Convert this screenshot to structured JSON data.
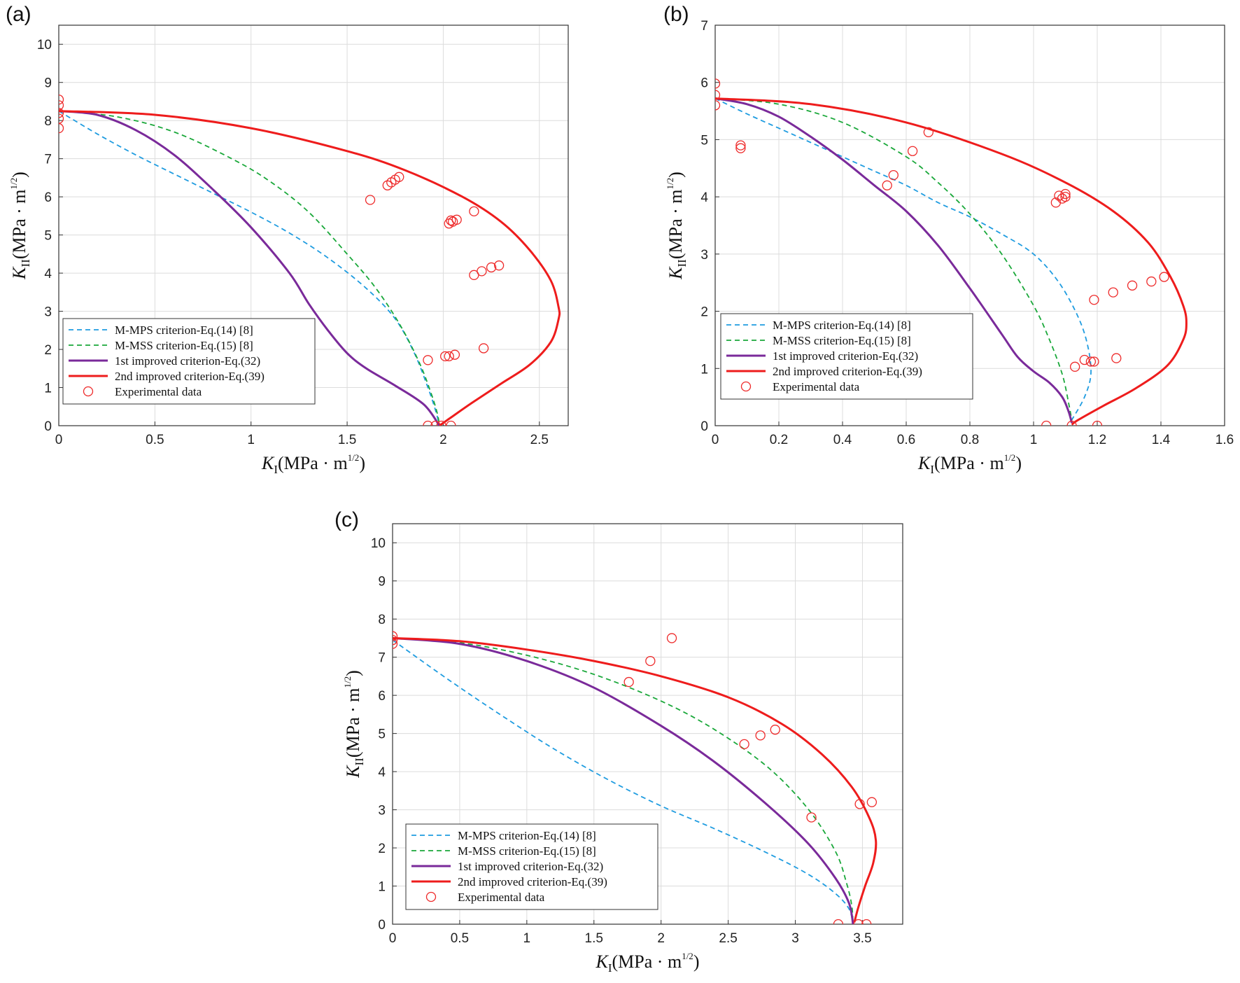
{
  "chart_data": [
    {
      "panel": "(a)",
      "type": "line",
      "xlabel_base": "K",
      "xlabel_sub": "I",
      "xlabel_unit": "(MPa · m",
      "xlabel_exp": "1/2",
      "xlabel_close": ")",
      "ylabel_base": "K",
      "ylabel_sub": "II",
      "ylabel_unit": "(MPa · m",
      "ylabel_exp": "1/2",
      "ylabel_close": ")",
      "xlim": [
        0,
        2.65
      ],
      "ylim": [
        0,
        10.5
      ],
      "xticks": [
        0,
        0.5,
        1,
        1.5,
        2,
        2.5
      ],
      "xtick_labels": [
        "0",
        "0.5",
        "1",
        "1.5",
        "2",
        "2.5"
      ],
      "yticks": [
        0,
        1,
        2,
        3,
        4,
        5,
        6,
        7,
        8,
        9,
        10
      ],
      "ytick_labels": [
        "0",
        "1",
        "2",
        "3",
        "4",
        "5",
        "6",
        "7",
        "8",
        "9",
        "10"
      ],
      "grid": true,
      "legend_position": "bottom-left",
      "series": [
        {
          "name": "M-MPS criterion-Eq.(14) [8]",
          "style": "dashed",
          "color": "#1f9ce0",
          "x": [
            0,
            0.2,
            0.4,
            0.6,
            0.8,
            1.0,
            1.2,
            1.4,
            1.6,
            1.75,
            1.85,
            1.92,
            1.96,
            1.98
          ],
          "y": [
            8.25,
            7.65,
            7.1,
            6.6,
            6.1,
            5.6,
            5.05,
            4.4,
            3.6,
            2.8,
            1.9,
            1.0,
            0.4,
            0
          ]
        },
        {
          "name": "M-MSS criterion-Eq.(15) [8]",
          "style": "dashed",
          "color": "#1aa83a",
          "x": [
            0,
            0.3,
            0.6,
            0.9,
            1.1,
            1.3,
            1.5,
            1.65,
            1.78,
            1.88,
            1.94,
            1.97,
            1.98
          ],
          "y": [
            8.25,
            8.1,
            7.7,
            7.0,
            6.4,
            5.6,
            4.5,
            3.6,
            2.6,
            1.6,
            0.8,
            0.3,
            0
          ]
        },
        {
          "name": "1st improved criterion-Eq.(32)",
          "style": "solid",
          "color": "#7a2a9a",
          "x": [
            0,
            0.2,
            0.4,
            0.6,
            0.8,
            1.0,
            1.2,
            1.3,
            1.4,
            1.5,
            1.6,
            1.75,
            1.9,
            1.98
          ],
          "y": [
            8.25,
            8.15,
            7.75,
            7.1,
            6.2,
            5.2,
            4.0,
            3.2,
            2.5,
            1.9,
            1.5,
            1.05,
            0.55,
            0
          ]
        },
        {
          "name": "2nd improved criterion-Eq.(39)",
          "style": "solid",
          "color": "#ee1c1c",
          "x": [
            0,
            0.5,
            1.0,
            1.5,
            1.8,
            2.1,
            2.3,
            2.45,
            2.56,
            2.6,
            2.6,
            2.56,
            2.45,
            2.3,
            2.15,
            2.05,
            1.98
          ],
          "y": [
            8.25,
            8.15,
            7.8,
            7.2,
            6.7,
            6.0,
            5.35,
            4.6,
            3.8,
            3.1,
            2.8,
            2.2,
            1.6,
            1.1,
            0.6,
            0.25,
            0
          ]
        },
        {
          "name": "Experimental data",
          "style": "marker",
          "color": "#ee2a2a",
          "x": [
            0,
            0,
            0,
            0,
            0,
            1.62,
            1.71,
            1.73,
            1.75,
            1.77,
            2.16,
            2.03,
            2.05,
            2.07,
            2.04,
            2.16,
            2.2,
            2.25,
            2.29,
            2.21,
            2.01,
            2.03,
            2.06,
            1.92,
            1.92,
            1.96,
            1.99,
            2.04
          ],
          "y": [
            8.55,
            8.4,
            8.2,
            8.05,
            7.8,
            5.92,
            6.3,
            6.38,
            6.45,
            6.52,
            5.62,
            5.3,
            5.35,
            5.4,
            5.38,
            3.95,
            4.05,
            4.15,
            4.2,
            2.03,
            1.82,
            1.82,
            1.86,
            1.72,
            0,
            0,
            0,
            0
          ]
        }
      ]
    },
    {
      "panel": "(b)",
      "type": "line",
      "xlabel_base": "K",
      "xlabel_sub": "I",
      "xlabel_unit": "(MPa · m",
      "xlabel_exp": "1/2",
      "xlabel_close": ")",
      "ylabel_base": "K",
      "ylabel_sub": "II",
      "ylabel_unit": "(MPa · m",
      "ylabel_exp": "1/2",
      "ylabel_close": ")",
      "xlim": [
        0,
        1.6
      ],
      "ylim": [
        0,
        7
      ],
      "xticks": [
        0,
        0.2,
        0.4,
        0.6,
        0.8,
        1,
        1.2,
        1.4,
        1.6
      ],
      "xtick_labels": [
        "0",
        "0.2",
        "0.4",
        "0.6",
        "0.8",
        "1",
        "1.2",
        "1.4",
        "1.6"
      ],
      "yticks": [
        0,
        1,
        2,
        3,
        4,
        5,
        6,
        7
      ],
      "ytick_labels": [
        "0",
        "1",
        "2",
        "3",
        "4",
        "5",
        "6",
        "7"
      ],
      "grid": true,
      "legend_position": "bottom-left",
      "series": [
        {
          "name": "M-MPS criterion-Eq.(14) [8]",
          "style": "dashed",
          "color": "#1f9ce0",
          "x": [
            0,
            0.1,
            0.2,
            0.3,
            0.4,
            0.5,
            0.6,
            0.7,
            0.8,
            0.9,
            1.0,
            1.08,
            1.14,
            1.17,
            1.18,
            1.16,
            1.12
          ],
          "y": [
            5.72,
            5.45,
            5.2,
            4.95,
            4.7,
            4.45,
            4.2,
            3.9,
            3.65,
            3.35,
            3.0,
            2.5,
            1.9,
            1.4,
            0.9,
            0.5,
            0.1
          ]
        },
        {
          "name": "M-MSS criterion-Eq.(15) [8]",
          "style": "dashed",
          "color": "#1aa83a",
          "x": [
            0,
            0.2,
            0.4,
            0.6,
            0.7,
            0.8,
            0.9,
            1.0,
            1.05,
            1.09,
            1.11,
            1.12
          ],
          "y": [
            5.72,
            5.62,
            5.3,
            4.7,
            4.25,
            3.7,
            3.0,
            2.1,
            1.5,
            0.9,
            0.4,
            0.1
          ]
        },
        {
          "name": "1st improved criterion-Eq.(32)",
          "style": "solid",
          "color": "#7a2a9a",
          "x": [
            0,
            0.1,
            0.2,
            0.3,
            0.4,
            0.5,
            0.6,
            0.7,
            0.8,
            0.9,
            0.95,
            1.0,
            1.05,
            1.09,
            1.11,
            1.12
          ],
          "y": [
            5.72,
            5.62,
            5.4,
            5.05,
            4.65,
            4.2,
            3.75,
            3.15,
            2.4,
            1.6,
            1.2,
            0.95,
            0.75,
            0.5,
            0.25,
            0.05
          ]
        },
        {
          "name": "2nd improved criterion-Eq.(39)",
          "style": "solid",
          "color": "#ee1c1c",
          "x": [
            0,
            0.3,
            0.6,
            0.9,
            1.1,
            1.25,
            1.36,
            1.43,
            1.47,
            1.48,
            1.47,
            1.42,
            1.32,
            1.22,
            1.14,
            1.12
          ],
          "y": [
            5.72,
            5.62,
            5.3,
            4.75,
            4.25,
            3.75,
            3.2,
            2.6,
            2.1,
            1.8,
            1.5,
            1.05,
            0.65,
            0.35,
            0.1,
            0.02
          ]
        },
        {
          "name": "Experimental data",
          "style": "marker",
          "color": "#ee2a2a",
          "x": [
            0,
            0,
            0,
            0.08,
            0.08,
            0.54,
            0.56,
            0.62,
            0.67,
            1.07,
            1.08,
            1.09,
            1.1,
            1.1,
            1.19,
            1.25,
            1.31,
            1.37,
            1.41,
            1.13,
            1.16,
            1.18,
            1.19,
            1.26,
            1.04,
            1.12,
            1.2
          ],
          "y": [
            5.98,
            5.78,
            5.6,
            4.9,
            4.85,
            4.2,
            4.38,
            4.8,
            5.13,
            3.9,
            4.02,
            3.97,
            4.05,
            4.0,
            2.2,
            2.33,
            2.45,
            2.52,
            2.6,
            1.03,
            1.15,
            1.12,
            1.12,
            1.18,
            0,
            0,
            0
          ]
        }
      ]
    },
    {
      "panel": "(c)",
      "type": "line",
      "xlabel_base": "K",
      "xlabel_sub": "I",
      "xlabel_unit": "(MPa · m",
      "xlabel_exp": "1/2",
      "xlabel_close": ")",
      "ylabel_base": "K",
      "ylabel_sub": "II",
      "ylabel_unit": "(MPa · m",
      "ylabel_exp": "1/2",
      "ylabel_close": ")",
      "xlim": [
        0,
        3.8
      ],
      "ylim": [
        0,
        10.5
      ],
      "xticks": [
        0,
        0.5,
        1,
        1.5,
        2,
        2.5,
        3,
        3.5
      ],
      "xtick_labels": [
        "0",
        "0.5",
        "1",
        "1.5",
        "2",
        "2.5",
        "3",
        "3.5"
      ],
      "yticks": [
        0,
        1,
        2,
        3,
        4,
        5,
        6,
        7,
        8,
        9,
        10
      ],
      "ytick_labels": [
        "0",
        "1",
        "2",
        "3",
        "4",
        "5",
        "6",
        "7",
        "8",
        "9",
        "10"
      ],
      "grid": true,
      "legend_position": "bottom-left",
      "series": [
        {
          "name": "M-MPS criterion-Eq.(14) [8]",
          "style": "dashed",
          "color": "#1f9ce0",
          "x": [
            0,
            0.4,
            0.8,
            1.2,
            1.6,
            2.0,
            2.4,
            2.8,
            3.1,
            3.3,
            3.4,
            3.43
          ],
          "y": [
            7.45,
            6.45,
            5.5,
            4.6,
            3.8,
            3.1,
            2.5,
            1.85,
            1.3,
            0.8,
            0.4,
            0
          ]
        },
        {
          "name": "M-MSS criterion-Eq.(15) [8]",
          "style": "dashed",
          "color": "#1aa83a",
          "x": [
            0,
            0.5,
            1.0,
            1.5,
            2.0,
            2.4,
            2.8,
            3.1,
            3.3,
            3.38,
            3.42,
            3.43
          ],
          "y": [
            7.5,
            7.38,
            7.05,
            6.55,
            5.85,
            5.1,
            4.1,
            3.0,
            1.9,
            1.1,
            0.5,
            0
          ]
        },
        {
          "name": "1st improved criterion-Eq.(32)",
          "style": "solid",
          "color": "#7a2a9a",
          "x": [
            0,
            0.5,
            1.0,
            1.5,
            2.0,
            2.4,
            2.8,
            3.1,
            3.3,
            3.4,
            3.43
          ],
          "y": [
            7.5,
            7.35,
            6.9,
            6.2,
            5.2,
            4.25,
            3.1,
            2.1,
            1.2,
            0.55,
            0
          ]
        },
        {
          "name": "2nd improved criterion-Eq.(39)",
          "style": "solid",
          "color": "#ee1c1c",
          "x": [
            0,
            0.5,
            1.0,
            1.5,
            2.0,
            2.5,
            2.9,
            3.2,
            3.42,
            3.55,
            3.6,
            3.58,
            3.52,
            3.47,
            3.44
          ],
          "y": [
            7.5,
            7.42,
            7.2,
            6.9,
            6.5,
            5.95,
            5.25,
            4.45,
            3.6,
            2.8,
            2.2,
            1.6,
            1.0,
            0.45,
            0.05
          ]
        },
        {
          "name": "Experimental data",
          "style": "marker",
          "color": "#ee2a2a",
          "x": [
            0,
            0,
            0,
            1.76,
            1.92,
            2.08,
            2.62,
            2.74,
            2.85,
            3.12,
            3.48,
            3.57,
            3.32,
            3.47,
            3.53
          ],
          "y": [
            7.55,
            7.45,
            7.35,
            6.35,
            6.9,
            7.5,
            4.72,
            4.95,
            5.1,
            2.8,
            3.15,
            3.2,
            0,
            0,
            0
          ]
        }
      ]
    }
  ]
}
